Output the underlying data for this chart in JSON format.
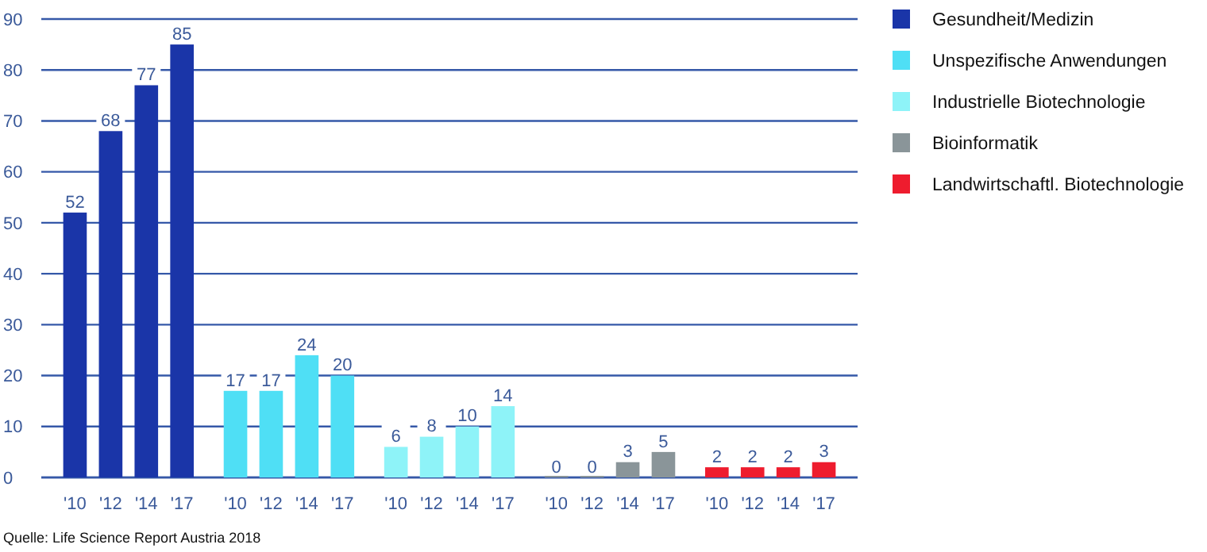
{
  "chart_data": {
    "type": "bar",
    "categories": [
      "'10",
      "'12",
      "'14",
      "'17",
      "'10",
      "'12",
      "'14",
      "'17",
      "'10",
      "'12",
      "'14",
      "'17",
      "'10",
      "'12",
      "'14",
      "'17",
      "'10",
      "'12",
      "'14",
      "'17"
    ],
    "series": [
      {
        "name": "Gesundheit/Medizin",
        "color": "#1a35a8",
        "values": [
          52,
          68,
          77,
          85,
          null,
          null,
          null,
          null,
          null,
          null,
          null,
          null,
          null,
          null,
          null,
          null,
          null,
          null,
          null,
          null
        ]
      },
      {
        "name": "Unspezifische Anwendungen",
        "color": "#4fdff5",
        "values": [
          null,
          null,
          null,
          null,
          17,
          17,
          24,
          20,
          null,
          null,
          null,
          null,
          null,
          null,
          null,
          null,
          null,
          null,
          null,
          null
        ]
      },
      {
        "name": "Industrielle Biotechnologie",
        "color": "#8ef3f8",
        "values": [
          null,
          null,
          null,
          null,
          null,
          null,
          null,
          null,
          6,
          8,
          10,
          14,
          null,
          null,
          null,
          null,
          null,
          null,
          null,
          null
        ]
      },
      {
        "name": "Bioinformatik",
        "color": "#8a9599",
        "values": [
          null,
          null,
          null,
          null,
          null,
          null,
          null,
          null,
          null,
          null,
          null,
          null,
          0,
          0,
          3,
          5,
          null,
          null,
          null,
          null
        ]
      },
      {
        "name": "Landwirtschaftl. Biotechnologie",
        "color": "#ee1c2e",
        "values": [
          null,
          null,
          null,
          null,
          null,
          null,
          null,
          null,
          null,
          null,
          null,
          null,
          null,
          null,
          null,
          null,
          2,
          2,
          2,
          3
        ]
      }
    ],
    "ylim": [
      0,
      90
    ],
    "yticks": [
      0,
      10,
      20,
      30,
      40,
      50,
      60,
      70,
      80,
      90
    ],
    "grid": "y",
    "legend": "right",
    "data_labels": true,
    "annotations": [
      "Quelle: Life Science Report Austria 2018"
    ]
  }
}
